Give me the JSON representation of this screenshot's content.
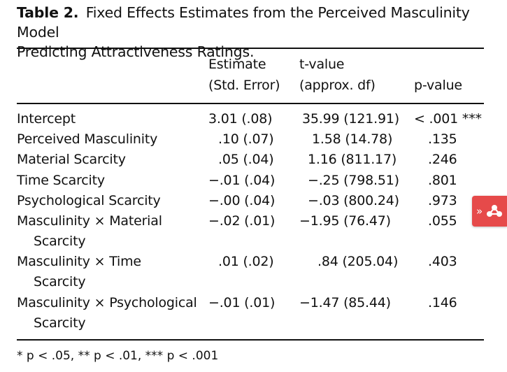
{
  "caption": {
    "label": "Table 2.",
    "line1": "Fixed Effects Estimates from the Perceived Masculinity Model",
    "line2": "Predicting Attractiveness Ratings."
  },
  "table": {
    "headers": {
      "estimate_line1": "Estimate",
      "estimate_line2": "(Std. Error)",
      "tvalue_line1": "t-value",
      "tvalue_line2": "(approx. df)",
      "pvalue": "p-value"
    },
    "rows": [
      {
        "term1": "Intercept",
        "term2": "",
        "estimate": "3.01 (.08)",
        "tvalue": "35.99 (121.91)",
        "pvalue": "< .001 ***"
      },
      {
        "term1": "Perceived Masculinity",
        "term2": "",
        "estimate": ".10 (.07)",
        "tvalue": "1.58 (14.78)",
        "pvalue": ".135"
      },
      {
        "term1": "Material Scarcity",
        "term2": "",
        "estimate": ".05 (.04)",
        "tvalue": "1.16 (811.17)",
        "pvalue": ".246"
      },
      {
        "term1": "Time Scarcity",
        "term2": "",
        "estimate": "−.01 (.04)",
        "tvalue": "−.25 (798.51)",
        "pvalue": ".801"
      },
      {
        "term1": "Psychological Scarcity",
        "term2": "",
        "estimate": "−.00 (.04)",
        "tvalue": "−.03 (800.24)",
        "pvalue": ".973"
      },
      {
        "term1": "Masculinity × Material",
        "term2": "Scarcity",
        "estimate": "−.02 (.01)",
        "tvalue": "−1.95 (76.47)",
        "pvalue": ".055"
      },
      {
        "term1": "Masculinity × Time",
        "term2": "Scarcity",
        "estimate": ".01 (.02)",
        "tvalue": ".84 (205.04)",
        "pvalue": ".403"
      },
      {
        "term1": "Masculinity × Psychological",
        "term2": "Scarcity",
        "estimate": "−.01 (.01)",
        "tvalue": "−1.47 (85.44)",
        "pvalue": ".146"
      }
    ]
  },
  "note": "* p < .05, ** p < .01, *** p < .001",
  "side_tab": {
    "chevron": "»",
    "icon": "share-network-icon",
    "color": "#e64a4a"
  }
}
